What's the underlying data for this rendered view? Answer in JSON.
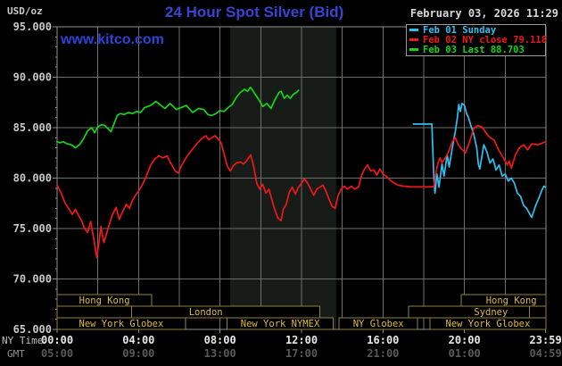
{
  "header": {
    "unit": "USD/oz",
    "title": "24 Hour Spot Silver (Bid)",
    "datetime": "February 03, 2026 11:29",
    "watermark": "www.kitco.com",
    "title_color": "#3645d3"
  },
  "legend": [
    {
      "label": "Feb 01 Sunday",
      "color": "#2fc0f0"
    },
    {
      "label": "Feb 02 NY close 79.118",
      "color": "#f21818"
    },
    {
      "label": "Feb 03 Last 88.703",
      "color": "#12d712"
    }
  ],
  "x_axis_row_labels": {
    "ny": "NY Time",
    "gmt": "GMT"
  },
  "chart_data": {
    "type": "line",
    "title": "24 Hour Spot Silver (Bid)",
    "ylabel": "USD/oz",
    "ylim": [
      65,
      95
    ],
    "xlim_hours": [
      0,
      24
    ],
    "grid": true,
    "legend_position": "top-right",
    "ny_close": 79.118,
    "last": 88.703,
    "y_ticks": [
      {
        "v": 95,
        "label": "95.000"
      },
      {
        "v": 90,
        "label": "90.000"
      },
      {
        "v": 85,
        "label": "85.000"
      },
      {
        "v": 80,
        "label": "80.000"
      },
      {
        "v": 75,
        "label": "75.000"
      },
      {
        "v": 70,
        "label": "70.000"
      },
      {
        "v": 65,
        "label": "65.000"
      }
    ],
    "x_ticks": [
      {
        "h": 0,
        "ny": "00:00",
        "gmt": "05:00"
      },
      {
        "h": 4,
        "ny": "04:00",
        "gmt": "09:00"
      },
      {
        "h": 8,
        "ny": "08:00",
        "gmt": "13:00"
      },
      {
        "h": 12,
        "ny": "12:00",
        "gmt": "17:00"
      },
      {
        "h": 16,
        "ny": "16:00",
        "gmt": "21:00"
      },
      {
        "h": 20,
        "ny": "20:00",
        "gmt": "01:00"
      },
      {
        "h": 23.983,
        "ny": "23:59",
        "gmt": "04:59"
      }
    ],
    "vertical_gridline_hours": [
      2,
      4,
      6,
      8,
      10,
      12,
      14,
      16,
      18,
      20,
      22
    ],
    "horizontal_gridline_values": [
      90,
      85,
      80,
      75,
      70
    ],
    "nymex_band_hours": [
      8.5,
      13.7
    ],
    "band_color": "#181c18",
    "series": [
      {
        "name": "Feb 01 Sunday",
        "color": "#2fc0f0",
        "points": [
          [
            17.5,
            85.35
          ],
          [
            17.8,
            85.35
          ],
          [
            18.1,
            85.35
          ],
          [
            18.4,
            85.35
          ],
          [
            18.45,
            82.5
          ],
          [
            18.5,
            80.0
          ],
          [
            18.55,
            78.5
          ],
          [
            18.65,
            80.4
          ],
          [
            18.75,
            79.1
          ],
          [
            18.9,
            81.4
          ],
          [
            19.0,
            80.2
          ],
          [
            19.15,
            82.3
          ],
          [
            19.25,
            81.1
          ],
          [
            19.4,
            83.0
          ],
          [
            19.55,
            84.6
          ],
          [
            19.65,
            86.0
          ],
          [
            19.72,
            87.3
          ],
          [
            19.8,
            86.6
          ],
          [
            19.88,
            87.4
          ],
          [
            20.0,
            87.2
          ],
          [
            20.1,
            86.4
          ],
          [
            20.2,
            86.0
          ],
          [
            20.3,
            85.3
          ],
          [
            20.45,
            84.4
          ],
          [
            20.6,
            83.0
          ],
          [
            20.68,
            81.4
          ],
          [
            20.75,
            80.9
          ],
          [
            20.95,
            83.3
          ],
          [
            21.1,
            82.6
          ],
          [
            21.25,
            81.5
          ],
          [
            21.4,
            81.9
          ],
          [
            21.55,
            80.8
          ],
          [
            21.7,
            81.3
          ],
          [
            21.85,
            80.2
          ],
          [
            22.0,
            80.4
          ],
          [
            22.15,
            79.7
          ],
          [
            22.3,
            80.0
          ],
          [
            22.45,
            79.5
          ],
          [
            22.6,
            78.5
          ],
          [
            22.75,
            78.2
          ],
          [
            22.9,
            77.3
          ],
          [
            23.05,
            77.0
          ],
          [
            23.3,
            76.1
          ],
          [
            23.5,
            77.3
          ],
          [
            23.65,
            78.0
          ],
          [
            23.8,
            78.8
          ],
          [
            23.9,
            79.2
          ],
          [
            23.98,
            79.1
          ]
        ]
      },
      {
        "name": "Feb 02",
        "color": "#f21818",
        "points": [
          [
            0,
            79.3
          ],
          [
            0.2,
            78.5
          ],
          [
            0.4,
            77.5
          ],
          [
            0.6,
            76.9
          ],
          [
            0.75,
            76.4
          ],
          [
            0.9,
            76.9
          ],
          [
            1.05,
            76.3
          ],
          [
            1.2,
            75.8
          ],
          [
            1.35,
            75.0
          ],
          [
            1.5,
            74.6
          ],
          [
            1.65,
            75.7
          ],
          [
            1.8,
            74.0
          ],
          [
            1.95,
            72.1
          ],
          [
            2.05,
            73.5
          ],
          [
            2.15,
            75.2
          ],
          [
            2.3,
            73.6
          ],
          [
            2.5,
            75.0
          ],
          [
            2.7,
            76.3
          ],
          [
            2.9,
            77.1
          ],
          [
            3.05,
            75.9
          ],
          [
            3.2,
            76.6
          ],
          [
            3.4,
            77.4
          ],
          [
            3.55,
            77.0
          ],
          [
            3.7,
            77.8
          ],
          [
            3.85,
            78.3
          ],
          [
            4.0,
            78.7
          ],
          [
            4.2,
            79.4
          ],
          [
            4.4,
            80.3
          ],
          [
            4.6,
            81.3
          ],
          [
            4.8,
            81.9
          ],
          [
            5.0,
            82.2
          ],
          [
            5.2,
            82.0
          ],
          [
            5.4,
            82.2
          ],
          [
            5.6,
            81.4
          ],
          [
            5.8,
            80.7
          ],
          [
            5.95,
            80.5
          ],
          [
            6.1,
            81.2
          ],
          [
            6.3,
            81.9
          ],
          [
            6.5,
            82.5
          ],
          [
            6.7,
            83.0
          ],
          [
            6.9,
            83.5
          ],
          [
            7.1,
            83.9
          ],
          [
            7.3,
            84.2
          ],
          [
            7.45,
            83.8
          ],
          [
            7.6,
            84.0
          ],
          [
            7.75,
            84.2
          ],
          [
            7.9,
            83.9
          ],
          [
            8.05,
            83.5
          ],
          [
            8.2,
            82.4
          ],
          [
            8.35,
            81.2
          ],
          [
            8.5,
            80.7
          ],
          [
            8.65,
            81.2
          ],
          [
            8.8,
            81.5
          ],
          [
            9.0,
            81.6
          ],
          [
            9.15,
            81.4
          ],
          [
            9.3,
            81.7
          ],
          [
            9.5,
            82.3
          ],
          [
            9.65,
            81.2
          ],
          [
            9.8,
            79.5
          ],
          [
            9.95,
            78.9
          ],
          [
            10.1,
            79.4
          ],
          [
            10.25,
            78.5
          ],
          [
            10.4,
            78.9
          ],
          [
            10.55,
            77.8
          ],
          [
            10.7,
            76.8
          ],
          [
            10.85,
            76.0
          ],
          [
            11.0,
            75.8
          ],
          [
            11.1,
            76.9
          ],
          [
            11.25,
            77.4
          ],
          [
            11.4,
            78.6
          ],
          [
            11.55,
            79.1
          ],
          [
            11.7,
            78.4
          ],
          [
            11.85,
            79.1
          ],
          [
            12.0,
            79.5
          ],
          [
            12.15,
            79.9
          ],
          [
            12.3,
            79.5
          ],
          [
            12.45,
            78.9
          ],
          [
            12.6,
            78.3
          ],
          [
            12.75,
            78.9
          ],
          [
            12.9,
            79.1
          ],
          [
            13.05,
            79.3
          ],
          [
            13.2,
            78.7
          ],
          [
            13.35,
            77.9
          ],
          [
            13.5,
            77.2
          ],
          [
            13.65,
            77.0
          ],
          [
            13.8,
            78.3
          ],
          [
            13.95,
            78.9
          ],
          [
            14.1,
            79.2
          ],
          [
            14.25,
            78.9
          ],
          [
            14.45,
            79.2
          ],
          [
            14.6,
            78.9
          ],
          [
            14.8,
            79.1
          ],
          [
            14.95,
            80.3
          ],
          [
            15.1,
            80.9
          ],
          [
            15.25,
            81.3
          ],
          [
            15.4,
            80.7
          ],
          [
            15.55,
            80.8
          ],
          [
            15.7,
            80.3
          ],
          [
            15.85,
            80.9
          ],
          [
            16.0,
            80.4
          ],
          [
            16.15,
            80.2
          ],
          [
            16.35,
            79.8
          ],
          [
            16.55,
            79.5
          ],
          [
            16.75,
            79.3
          ],
          [
            17.0,
            79.2
          ],
          [
            17.4,
            79.12
          ],
          [
            17.8,
            79.12
          ],
          [
            18.2,
            79.12
          ],
          [
            18.5,
            79.15
          ],
          [
            18.6,
            80.5
          ],
          [
            18.7,
            81.5
          ],
          [
            18.8,
            82.0
          ],
          [
            18.9,
            81.5
          ],
          [
            19.05,
            82.0
          ],
          [
            19.2,
            82.5
          ],
          [
            19.4,
            83.6
          ],
          [
            19.55,
            84.0
          ],
          [
            19.7,
            83.3
          ],
          [
            19.85,
            82.9
          ],
          [
            20.05,
            82.5
          ],
          [
            20.25,
            83.6
          ],
          [
            20.45,
            84.9
          ],
          [
            20.65,
            85.2
          ],
          [
            20.85,
            85.1
          ],
          [
            21.05,
            84.5
          ],
          [
            21.25,
            84.0
          ],
          [
            21.45,
            83.8
          ],
          [
            21.65,
            82.9
          ],
          [
            21.85,
            82.2
          ],
          [
            22.0,
            81.7
          ],
          [
            22.1,
            81.3
          ],
          [
            22.2,
            81.7
          ],
          [
            22.3,
            81.0
          ],
          [
            22.5,
            82.3
          ],
          [
            22.7,
            83.0
          ],
          [
            22.9,
            83.3
          ],
          [
            23.1,
            82.8
          ],
          [
            23.3,
            83.4
          ],
          [
            23.6,
            83.3
          ],
          [
            23.98,
            83.6
          ]
        ]
      },
      {
        "name": "Feb 03",
        "color": "#12d712",
        "points": [
          [
            0,
            83.6
          ],
          [
            0.15,
            83.5
          ],
          [
            0.3,
            83.6
          ],
          [
            0.5,
            83.4
          ],
          [
            0.7,
            83.3
          ],
          [
            0.9,
            83.0
          ],
          [
            1.1,
            83.3
          ],
          [
            1.3,
            83.9
          ],
          [
            1.5,
            84.7
          ],
          [
            1.7,
            85.0
          ],
          [
            1.85,
            84.5
          ],
          [
            2.0,
            85.1
          ],
          [
            2.2,
            85.3
          ],
          [
            2.35,
            85.2
          ],
          [
            2.5,
            84.9
          ],
          [
            2.65,
            84.6
          ],
          [
            2.8,
            85.4
          ],
          [
            2.95,
            86.2
          ],
          [
            3.1,
            86.4
          ],
          [
            3.3,
            86.3
          ],
          [
            3.5,
            86.5
          ],
          [
            3.7,
            86.4
          ],
          [
            3.9,
            86.6
          ],
          [
            4.1,
            86.5
          ],
          [
            4.3,
            87.0
          ],
          [
            4.6,
            87.2
          ],
          [
            4.85,
            87.6
          ],
          [
            5.1,
            87.2
          ],
          [
            5.3,
            86.9
          ],
          [
            5.55,
            87.4
          ],
          [
            5.85,
            86.8
          ],
          [
            6.1,
            87.0
          ],
          [
            6.35,
            87.2
          ],
          [
            6.65,
            86.5
          ],
          [
            6.95,
            86.9
          ],
          [
            7.2,
            86.8
          ],
          [
            7.4,
            86.3
          ],
          [
            7.6,
            86.2
          ],
          [
            7.8,
            86.4
          ],
          [
            8.0,
            86.7
          ],
          [
            8.2,
            86.6
          ],
          [
            8.4,
            87.0
          ],
          [
            8.6,
            87.3
          ],
          [
            8.8,
            88.0
          ],
          [
            9.0,
            88.5
          ],
          [
            9.2,
            88.8
          ],
          [
            9.35,
            88.6
          ],
          [
            9.5,
            89.0
          ],
          [
            9.7,
            88.4
          ],
          [
            9.9,
            87.8
          ],
          [
            10.1,
            87.1
          ],
          [
            10.3,
            87.4
          ],
          [
            10.5,
            86.9
          ],
          [
            10.7,
            87.8
          ],
          [
            10.9,
            88.5
          ],
          [
            11.0,
            88.6
          ],
          [
            11.15,
            87.9
          ],
          [
            11.3,
            88.2
          ],
          [
            11.45,
            87.9
          ],
          [
            11.6,
            88.3
          ],
          [
            11.75,
            88.5
          ],
          [
            11.85,
            88.7
          ]
        ]
      }
    ],
    "sessions": [
      {
        "row": 1,
        "start": 0,
        "end": 4.65,
        "label": "Hong Kong"
      },
      {
        "row": 1,
        "start": 19.85,
        "end": 24,
        "label": "Hong Kong",
        "label_center": 22.3
      },
      {
        "row": 2,
        "start": 0,
        "end": 3.65,
        "label": ""
      },
      {
        "row": 2,
        "start": 3.65,
        "end": 12.9,
        "label": "London",
        "label_center": 7.3
      },
      {
        "row": 2,
        "start": 17.25,
        "end": 23.2,
        "label": "Sydney",
        "label_center": 21.3
      },
      {
        "row": 2,
        "start": 23.2,
        "end": 24,
        "label": ""
      },
      {
        "row": 3,
        "start": 0,
        "end": 6.3,
        "label": "New York Globex"
      },
      {
        "row": 3,
        "start": 8.35,
        "end": 13.55,
        "label": "New York NYMEX"
      },
      {
        "row": 3,
        "start": 13.85,
        "end": 17.7,
        "label": "NY Globex"
      },
      {
        "row": 3,
        "start": 18.3,
        "end": 24,
        "label": "New York Globex"
      }
    ],
    "session_colors": {
      "border": "#8f7f3e",
      "text": "#ddba3e"
    },
    "grid_color": "#6e6e6e",
    "border_color": "#909090",
    "tick_label_colors": {
      "y": "#c9c9c9",
      "x_ny": "#e8e8e8",
      "x_gmt": "#5a5a5a"
    }
  }
}
